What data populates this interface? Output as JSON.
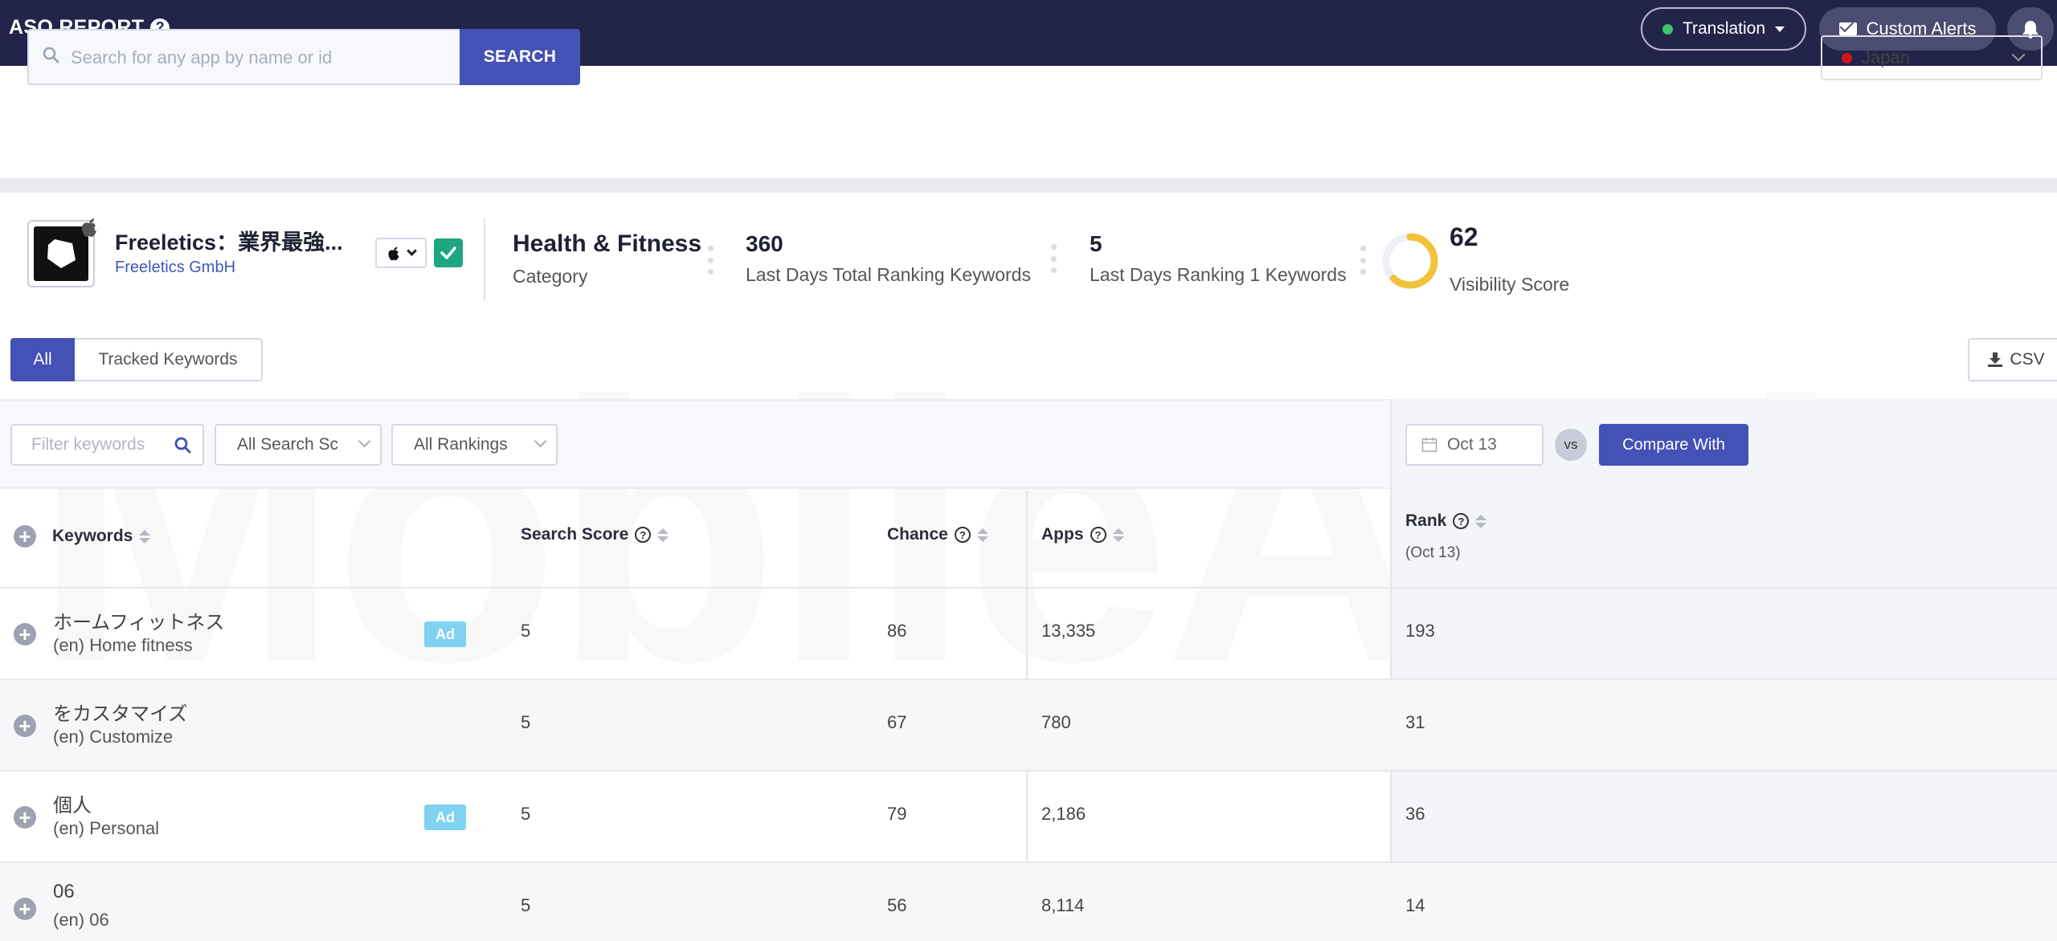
{
  "topbar": {
    "title": "ASO REPORT",
    "help_icon": "?",
    "translation_label": "Translation",
    "alerts_label": "Custom Alerts"
  },
  "search": {
    "placeholder": "Search for any app by name or id",
    "button_label": "SEARCH",
    "country": "Japan"
  },
  "app": {
    "name": "Freeletics：業界最強...",
    "developer": "Freeletics GmbH",
    "platform_icon": "apple-icon",
    "category_value": "Health & Fitness",
    "category_label": "Category",
    "total_keywords_value": "360",
    "total_keywords_label": "Last Days Total Ranking Keywords",
    "rank1_value": "5",
    "rank1_label": "Last Days Ranking 1 Keywords",
    "visibility_value": "62",
    "visibility_label": "Visibility Score",
    "visibility_fraction": 0.62
  },
  "tabs": [
    {
      "label": "All",
      "active": true
    },
    {
      "label": "Tracked Keywords",
      "active": false
    }
  ],
  "csv_label": "CSV",
  "filters": {
    "keyword_placeholder": "Filter keywords",
    "search_score": "All Search Sc",
    "rankings": "All Rankings",
    "date": "Oct 13",
    "vs": "vs",
    "compare_label": "Compare With"
  },
  "table": {
    "headers": {
      "keywords": "Keywords",
      "search_score": "Search Score",
      "chance": "Chance",
      "apps": "Apps",
      "rank": "Rank",
      "rank_sub": "(Oct 13)"
    },
    "rows": [
      {
        "keyword": "ホームフィットネス",
        "translation": "(en) Home fitness",
        "ad": "Ad",
        "search_score": "5",
        "chance": "86",
        "apps": "13,335",
        "rank": "193"
      },
      {
        "keyword": "をカスタマイズ",
        "translation": "(en) Customize",
        "ad": "",
        "search_score": "5",
        "chance": "67",
        "apps": "780",
        "rank": "31"
      },
      {
        "keyword": "個人",
        "translation": "(en) Personal",
        "ad": "Ad",
        "search_score": "5",
        "chance": "79",
        "apps": "2,186",
        "rank": "36"
      },
      {
        "keyword": "06",
        "translation": "(en) 06",
        "ad": "",
        "search_score": "5",
        "chance": "56",
        "apps": "8,114",
        "rank": "14"
      }
    ]
  },
  "colors": {
    "topbar": "#222449",
    "accent": "#4451b5",
    "ad_badge": "#7fd3f0",
    "visibility_ring": "#f2c23b",
    "check": "#1ea683"
  }
}
